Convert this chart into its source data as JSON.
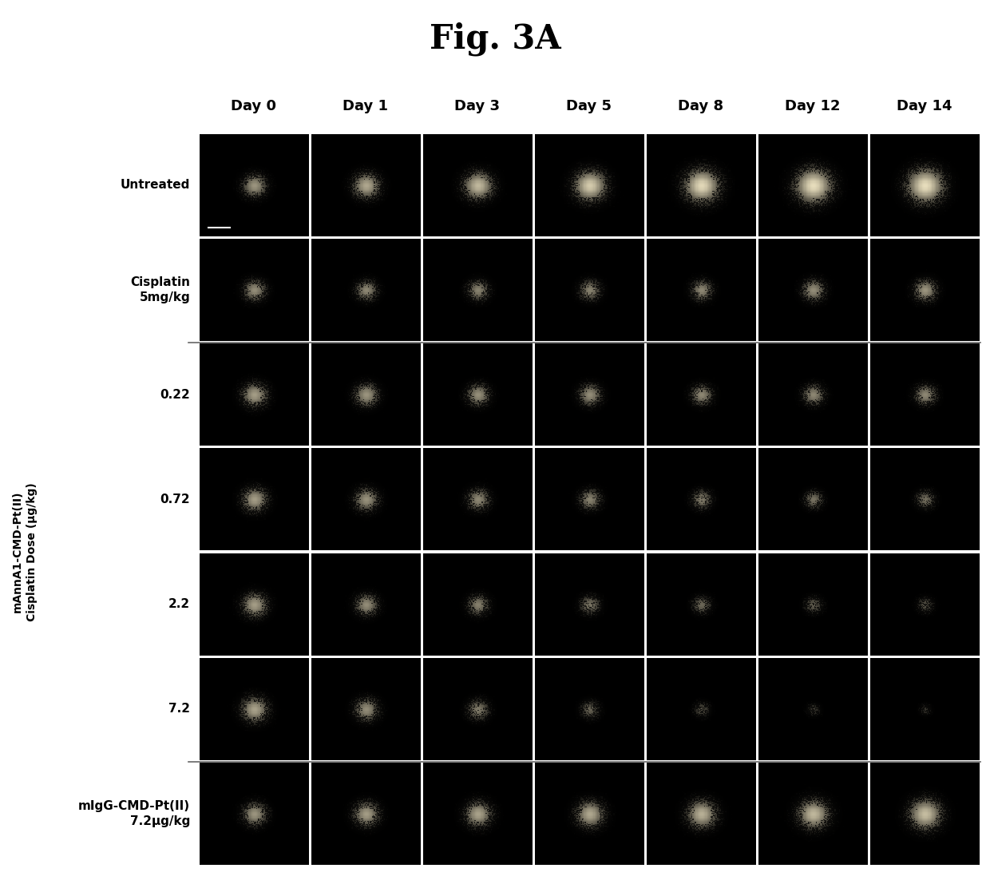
{
  "title": "Fig. 3A",
  "col_labels": [
    "Day 0",
    "Day 1",
    "Day 3",
    "Day 5",
    "Day 8",
    "Day 12",
    "Day 14"
  ],
  "row_label_configs": [
    {
      "text": "Untreated",
      "row": 0
    },
    {
      "text": "Cisplatin\n5mg/kg",
      "row": 1
    },
    {
      "text": "0.22",
      "row": 2
    },
    {
      "text": "0.72",
      "row": 3
    },
    {
      "text": "2.2",
      "row": 4
    },
    {
      "text": "7.2",
      "row": 5
    },
    {
      "text": "mIgG-CMD-Pt(II)\n7.2μg/kg",
      "row": 6
    }
  ],
  "group_label": "mAnnA1-CMD-Pt(II)\nCisplatin Dose (μg/kg)",
  "group_rows": [
    2,
    3,
    4,
    5
  ],
  "separator_after_rows": [
    1,
    5
  ],
  "n_rows": 7,
  "n_cols": 7,
  "figure_bg": "#ffffff",
  "title_fontsize": 30,
  "col_label_fontsize": 13,
  "row_label_fontsize": 11,
  "group_label_fontsize": 10,
  "row_col_intensity": [
    [
      0.55,
      0.62,
      0.68,
      0.75,
      0.8,
      0.82,
      0.82
    ],
    [
      0.52,
      0.5,
      0.48,
      0.48,
      0.5,
      0.52,
      0.55
    ],
    [
      0.58,
      0.55,
      0.53,
      0.52,
      0.5,
      0.5,
      0.5
    ],
    [
      0.58,
      0.54,
      0.5,
      0.48,
      0.45,
      0.42,
      0.4
    ],
    [
      0.58,
      0.52,
      0.47,
      0.42,
      0.38,
      0.34,
      0.3
    ],
    [
      0.6,
      0.52,
      0.45,
      0.36,
      0.28,
      0.22,
      0.18
    ],
    [
      0.55,
      0.58,
      0.6,
      0.62,
      0.65,
      0.68,
      0.7
    ]
  ],
  "row_col_spread": [
    [
      0.18,
      0.2,
      0.22,
      0.24,
      0.26,
      0.27,
      0.27
    ],
    [
      0.17,
      0.16,
      0.16,
      0.16,
      0.16,
      0.17,
      0.17
    ],
    [
      0.19,
      0.18,
      0.17,
      0.17,
      0.16,
      0.16,
      0.16
    ],
    [
      0.19,
      0.18,
      0.17,
      0.16,
      0.15,
      0.14,
      0.14
    ],
    [
      0.19,
      0.17,
      0.16,
      0.15,
      0.14,
      0.13,
      0.12
    ],
    [
      0.2,
      0.18,
      0.16,
      0.14,
      0.12,
      0.1,
      0.09
    ],
    [
      0.18,
      0.19,
      0.2,
      0.21,
      0.22,
      0.23,
      0.24
    ]
  ]
}
